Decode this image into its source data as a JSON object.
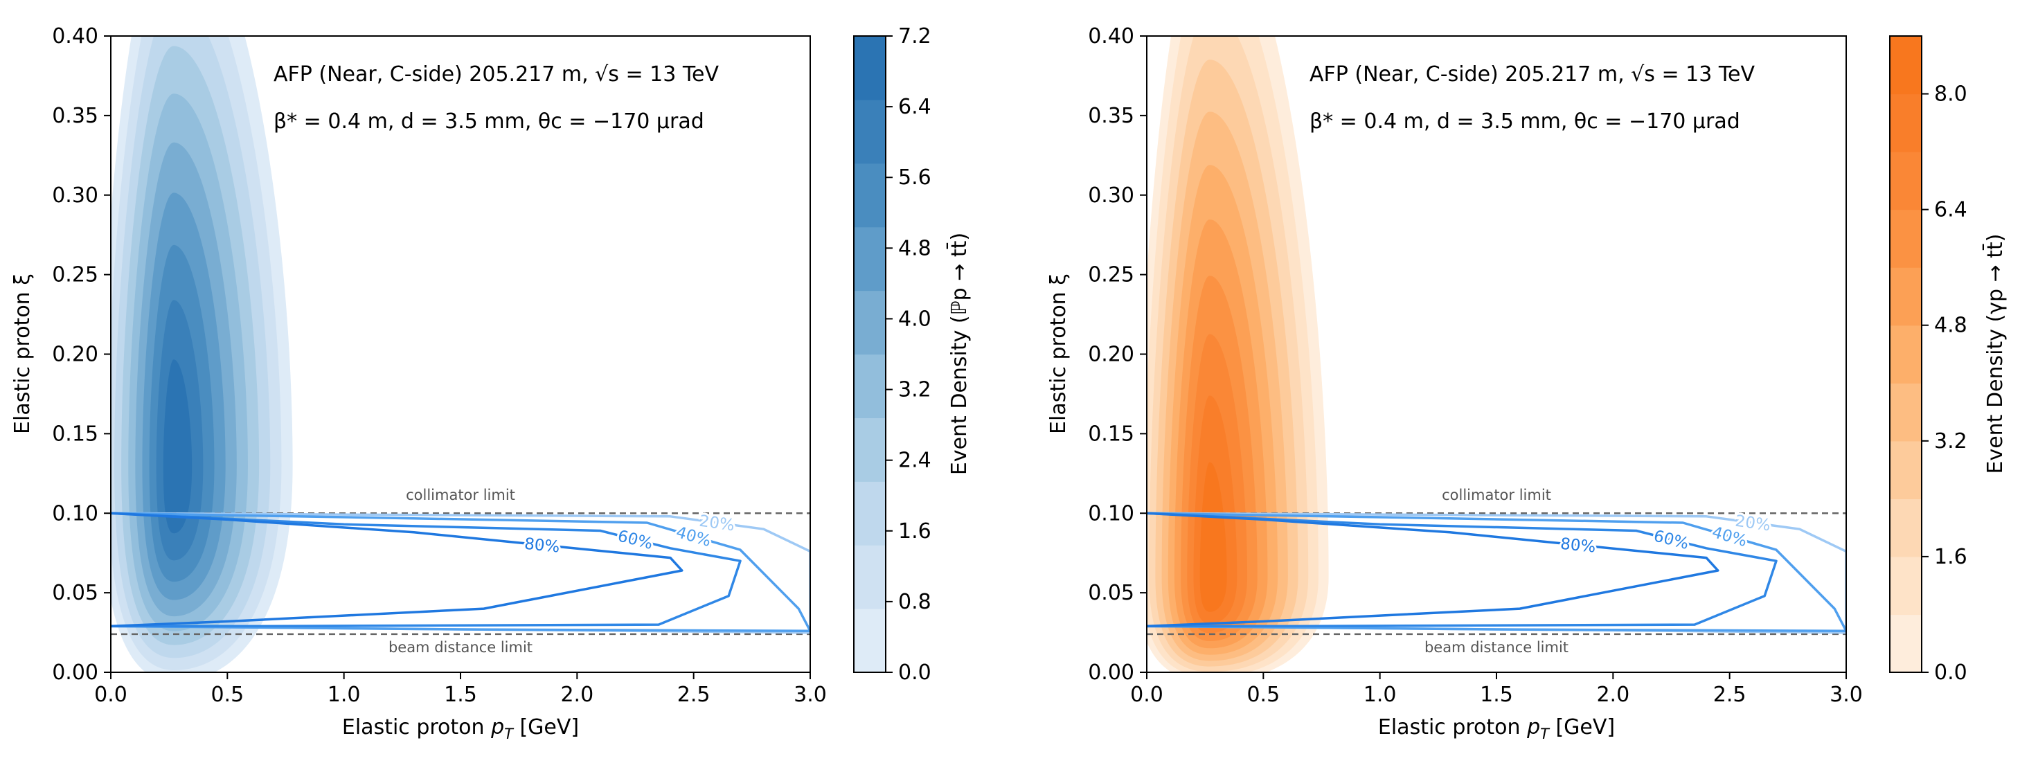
{
  "chart_data": [
    {
      "type": "contour",
      "xlabel": "Elastic proton p_T [GeV]",
      "xlabel_parts": [
        "Elastic proton ",
        "p",
        "T",
        " [GeV]"
      ],
      "ylabel": "Elastic proton ξ",
      "xlim": [
        0.0,
        3.0
      ],
      "ylim": [
        0.0,
        0.4
      ],
      "x_ticks": [
        "0.0",
        "0.5",
        "1.0",
        "1.5",
        "2.0",
        "2.5",
        "3.0"
      ],
      "x_tick_values": [
        0.0,
        0.5,
        1.0,
        1.5,
        2.0,
        2.5,
        3.0
      ],
      "y_ticks": [
        "0.00",
        "0.05",
        "0.10",
        "0.15",
        "0.20",
        "0.25",
        "0.30",
        "0.35",
        "0.40"
      ],
      "y_tick_values": [
        0.0,
        0.05,
        0.1,
        0.15,
        0.2,
        0.25,
        0.3,
        0.35,
        0.4
      ],
      "annotation_line1": "AFP (Near, C-side) 205.217 m, √s = 13 TeV",
      "annotation_line2": "β* = 0.4 m, d = 3.5 mm, θc = −170 μrad",
      "colorbar_label": "Event Density (ℙp → tt̄)",
      "colorbar_ticks": [
        "0.0",
        "0.8",
        "1.6",
        "2.4",
        "3.2",
        "4.0",
        "4.8",
        "5.6",
        "6.4",
        "7.2"
      ],
      "colorbar_tick_values": [
        0.0,
        0.8,
        1.6,
        2.4,
        3.2,
        4.0,
        4.8,
        5.6,
        6.4,
        7.2
      ],
      "colorbar_range": [
        0.0,
        7.2
      ],
      "colormap": [
        "#deebf7",
        "#cfe1f2",
        "#bfd8ed",
        "#a9cce4",
        "#92bedc",
        "#79add2",
        "#5f9cc9",
        "#4a8dc0",
        "#3a80b9",
        "#2b74b3"
      ],
      "density_peak": {
        "x": 0.27,
        "y": 0.13
      },
      "collimator_limit": {
        "y": 0.1,
        "label": "collimator limit"
      },
      "beam_distance_limit": {
        "y": 0.024,
        "label": "beam distance limit"
      },
      "acceptance_contours": [
        {
          "label": "20%",
          "color": "#9ec9f5",
          "points": [
            [
              0.0,
              0.1
            ],
            [
              1.2,
              0.099
            ],
            [
              2.4,
              0.098
            ],
            [
              2.8,
              0.09
            ],
            [
              3.0,
              0.076
            ],
            [
              3.0,
              0.025
            ],
            [
              0.0,
              0.029
            ]
          ]
        },
        {
          "label": "40%",
          "color": "#4f9fee",
          "points": [
            [
              0.0,
              0.1
            ],
            [
              1.2,
              0.097
            ],
            [
              2.3,
              0.094
            ],
            [
              2.7,
              0.077
            ],
            [
              2.95,
              0.04
            ],
            [
              3.0,
              0.026
            ],
            [
              1.5,
              0.027
            ],
            [
              0.0,
              0.029
            ]
          ]
        },
        {
          "label": "60%",
          "color": "#2f87e6",
          "points": [
            [
              0.0,
              0.1
            ],
            [
              1.0,
              0.093
            ],
            [
              2.1,
              0.089
            ],
            [
              2.4,
              0.078
            ],
            [
              2.7,
              0.07
            ],
            [
              2.65,
              0.048
            ],
            [
              2.35,
              0.03
            ],
            [
              0.6,
              0.029
            ],
            [
              0.0,
              0.029
            ]
          ]
        },
        {
          "label": "80%",
          "color": "#1f78e0",
          "points": [
            [
              0.0,
              0.1
            ],
            [
              0.5,
              0.096
            ],
            [
              1.3,
              0.088
            ],
            [
              2.4,
              0.072
            ],
            [
              2.45,
              0.064
            ],
            [
              1.6,
              0.04
            ],
            [
              0.5,
              0.032
            ],
            [
              0.0,
              0.029
            ]
          ]
        }
      ]
    },
    {
      "type": "contour",
      "xlabel": "Elastic proton p_T [GeV]",
      "xlabel_parts": [
        "Elastic proton ",
        "p",
        "T",
        " [GeV]"
      ],
      "ylabel": "Elastic proton ξ",
      "xlim": [
        0.0,
        3.0
      ],
      "ylim": [
        0.0,
        0.4
      ],
      "x_ticks": [
        "0.0",
        "0.5",
        "1.0",
        "1.5",
        "2.0",
        "2.5",
        "3.0"
      ],
      "x_tick_values": [
        0.0,
        0.5,
        1.0,
        1.5,
        2.0,
        2.5,
        3.0
      ],
      "y_ticks": [
        "0.00",
        "0.05",
        "0.10",
        "0.15",
        "0.20",
        "0.25",
        "0.30",
        "0.35",
        "0.40"
      ],
      "y_tick_values": [
        0.0,
        0.05,
        0.1,
        0.15,
        0.2,
        0.25,
        0.3,
        0.35,
        0.4
      ],
      "annotation_line1": "AFP (Near, C-side) 205.217 m, √s = 13 TeV",
      "annotation_line2": "β* = 0.4 m, d = 3.5 mm, θc = −170 μrad",
      "colorbar_label": "Event Density (γp → tt̄)",
      "colorbar_ticks": [
        "0.0",
        "1.6",
        "3.2",
        "4.8",
        "6.4",
        "8.0"
      ],
      "colorbar_tick_values": [
        0.0,
        1.6,
        3.2,
        4.8,
        6.4,
        8.0
      ],
      "colorbar_range": [
        0.0,
        8.8
      ],
      "colormap": [
        "#feeddc",
        "#fee3c8",
        "#fdd8b4",
        "#fdcb9b",
        "#fdbd82",
        "#fdaf6a",
        "#fca055",
        "#fb9243",
        "#fa8736",
        "#f97e2a",
        "#f8771e"
      ],
      "density_peak": {
        "x": 0.27,
        "y": 0.06
      },
      "collimator_limit": {
        "y": 0.1,
        "label": "collimator limit"
      },
      "beam_distance_limit": {
        "y": 0.024,
        "label": "beam distance limit"
      },
      "acceptance_contours": [
        {
          "label": "20%",
          "color": "#9ec9f5",
          "points": [
            [
              0.0,
              0.1
            ],
            [
              1.2,
              0.099
            ],
            [
              2.4,
              0.098
            ],
            [
              2.8,
              0.09
            ],
            [
              3.0,
              0.076
            ],
            [
              3.0,
              0.025
            ],
            [
              0.0,
              0.029
            ]
          ]
        },
        {
          "label": "40%",
          "color": "#4f9fee",
          "points": [
            [
              0.0,
              0.1
            ],
            [
              1.2,
              0.097
            ],
            [
              2.3,
              0.094
            ],
            [
              2.7,
              0.077
            ],
            [
              2.95,
              0.04
            ],
            [
              3.0,
              0.026
            ],
            [
              1.5,
              0.027
            ],
            [
              0.0,
              0.029
            ]
          ]
        },
        {
          "label": "60%",
          "color": "#2f87e6",
          "points": [
            [
              0.0,
              0.1
            ],
            [
              1.0,
              0.093
            ],
            [
              2.1,
              0.089
            ],
            [
              2.4,
              0.078
            ],
            [
              2.7,
              0.07
            ],
            [
              2.65,
              0.048
            ],
            [
              2.35,
              0.03
            ],
            [
              0.6,
              0.029
            ],
            [
              0.0,
              0.029
            ]
          ]
        },
        {
          "label": "80%",
          "color": "#1f78e0",
          "points": [
            [
              0.0,
              0.1
            ],
            [
              0.5,
              0.096
            ],
            [
              1.3,
              0.088
            ],
            [
              2.4,
              0.072
            ],
            [
              2.45,
              0.064
            ],
            [
              1.6,
              0.04
            ],
            [
              0.5,
              0.032
            ],
            [
              0.0,
              0.029
            ]
          ]
        }
      ]
    }
  ]
}
